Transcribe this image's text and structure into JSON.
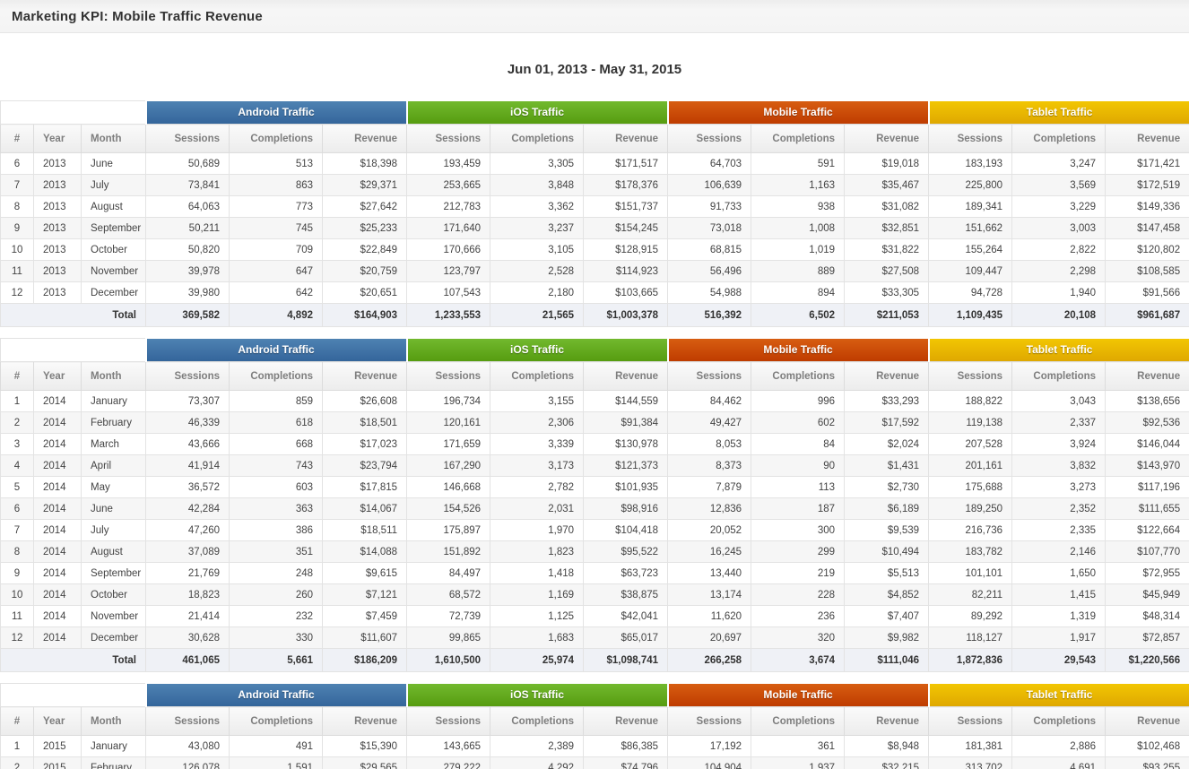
{
  "page": {
    "title": "Marketing KPI: Mobile Traffic Revenue",
    "date_range": "Jun 01, 2013 - May 31, 2015"
  },
  "columns": {
    "row_headers": [
      "#",
      "Year",
      "Month"
    ],
    "metrics": [
      "Sessions",
      "Completions",
      "Revenue"
    ],
    "total_label": "Total",
    "groups": [
      {
        "label": "Android Traffic",
        "color_top": "#4e82b2",
        "color_bottom": "#34659b"
      },
      {
        "label": "iOS Traffic",
        "color_top": "#72b92e",
        "color_bottom": "#569c10"
      },
      {
        "label": "Mobile Traffic",
        "color_top": "#d75d11",
        "color_bottom": "#bf3c00"
      },
      {
        "label": "Tablet Traffic",
        "color_top": "#f2c602",
        "color_bottom": "#dfa801"
      }
    ]
  },
  "tables": [
    {
      "year": "2013",
      "rows": [
        [
          "6",
          "2013",
          "June",
          "50,689",
          "513",
          "$18,398",
          "193,459",
          "3,305",
          "$171,517",
          "64,703",
          "591",
          "$19,018",
          "183,193",
          "3,247",
          "$171,421"
        ],
        [
          "7",
          "2013",
          "July",
          "73,841",
          "863",
          "$29,371",
          "253,665",
          "3,848",
          "$178,376",
          "106,639",
          "1,163",
          "$35,467",
          "225,800",
          "3,569",
          "$172,519"
        ],
        [
          "8",
          "2013",
          "August",
          "64,063",
          "773",
          "$27,642",
          "212,783",
          "3,362",
          "$151,737",
          "91,733",
          "938",
          "$31,082",
          "189,341",
          "3,229",
          "$149,336"
        ],
        [
          "9",
          "2013",
          "September",
          "50,211",
          "745",
          "$25,233",
          "171,640",
          "3,237",
          "$154,245",
          "73,018",
          "1,008",
          "$32,851",
          "151,662",
          "3,003",
          "$147,458"
        ],
        [
          "10",
          "2013",
          "October",
          "50,820",
          "709",
          "$22,849",
          "170,666",
          "3,105",
          "$128,915",
          "68,815",
          "1,019",
          "$31,822",
          "155,264",
          "2,822",
          "$120,802"
        ],
        [
          "11",
          "2013",
          "November",
          "39,978",
          "647",
          "$20,759",
          "123,797",
          "2,528",
          "$114,923",
          "56,496",
          "889",
          "$27,508",
          "109,447",
          "2,298",
          "$108,585"
        ],
        [
          "12",
          "2013",
          "December",
          "39,980",
          "642",
          "$20,651",
          "107,543",
          "2,180",
          "$103,665",
          "54,988",
          "894",
          "$33,305",
          "94,728",
          "1,940",
          "$91,566"
        ]
      ],
      "total": [
        "369,582",
        "4,892",
        "$164,903",
        "1,233,553",
        "21,565",
        "$1,003,378",
        "516,392",
        "6,502",
        "$211,053",
        "1,109,435",
        "20,108",
        "$961,687"
      ]
    },
    {
      "year": "2014",
      "rows": [
        [
          "1",
          "2014",
          "January",
          "73,307",
          "859",
          "$26,608",
          "196,734",
          "3,155",
          "$144,559",
          "84,462",
          "996",
          "$33,293",
          "188,822",
          "3,043",
          "$138,656"
        ],
        [
          "2",
          "2014",
          "February",
          "46,339",
          "618",
          "$18,501",
          "120,161",
          "2,306",
          "$91,384",
          "49,427",
          "602",
          "$17,592",
          "119,138",
          "2,337",
          "$92,536"
        ],
        [
          "3",
          "2014",
          "March",
          "43,666",
          "668",
          "$17,023",
          "171,659",
          "3,339",
          "$130,978",
          "8,053",
          "84",
          "$2,024",
          "207,528",
          "3,924",
          "$146,044"
        ],
        [
          "4",
          "2014",
          "April",
          "41,914",
          "743",
          "$23,794",
          "167,290",
          "3,173",
          "$121,373",
          "8,373",
          "90",
          "$1,431",
          "201,161",
          "3,832",
          "$143,970"
        ],
        [
          "5",
          "2014",
          "May",
          "36,572",
          "603",
          "$17,815",
          "146,668",
          "2,782",
          "$101,935",
          "7,879",
          "113",
          "$2,730",
          "175,688",
          "3,273",
          "$117,196"
        ],
        [
          "6",
          "2014",
          "June",
          "42,284",
          "363",
          "$14,067",
          "154,526",
          "2,031",
          "$98,916",
          "12,836",
          "187",
          "$6,189",
          "189,250",
          "2,352",
          "$111,655"
        ],
        [
          "7",
          "2014",
          "July",
          "47,260",
          "386",
          "$18,511",
          "175,897",
          "1,970",
          "$104,418",
          "20,052",
          "300",
          "$9,539",
          "216,736",
          "2,335",
          "$122,664"
        ],
        [
          "8",
          "2014",
          "August",
          "37,089",
          "351",
          "$14,088",
          "151,892",
          "1,823",
          "$95,522",
          "16,245",
          "299",
          "$10,494",
          "183,782",
          "2,146",
          "$107,770"
        ],
        [
          "9",
          "2014",
          "September",
          "21,769",
          "248",
          "$9,615",
          "84,497",
          "1,418",
          "$63,723",
          "13,440",
          "219",
          "$5,513",
          "101,101",
          "1,650",
          "$72,955"
        ],
        [
          "10",
          "2014",
          "October",
          "18,823",
          "260",
          "$7,121",
          "68,572",
          "1,169",
          "$38,875",
          "13,174",
          "228",
          "$4,852",
          "82,211",
          "1,415",
          "$45,949"
        ],
        [
          "11",
          "2014",
          "November",
          "21,414",
          "232",
          "$7,459",
          "72,739",
          "1,125",
          "$42,041",
          "11,620",
          "236",
          "$7,407",
          "89,292",
          "1,319",
          "$48,314"
        ],
        [
          "12",
          "2014",
          "December",
          "30,628",
          "330",
          "$11,607",
          "99,865",
          "1,683",
          "$65,017",
          "20,697",
          "320",
          "$9,982",
          "118,127",
          "1,917",
          "$72,857"
        ]
      ],
      "total": [
        "461,065",
        "5,661",
        "$186,209",
        "1,610,500",
        "25,974",
        "$1,098,741",
        "266,258",
        "3,674",
        "$111,046",
        "1,872,836",
        "29,543",
        "$1,220,566"
      ]
    },
    {
      "year": "2015",
      "rows": [
        [
          "1",
          "2015",
          "January",
          "43,080",
          "491",
          "$15,390",
          "143,665",
          "2,389",
          "$86,385",
          "17,192",
          "361",
          "$8,948",
          "181,381",
          "2,886",
          "$102,468"
        ],
        [
          "2",
          "2015",
          "February",
          "126,078",
          "1,591",
          "$29,565",
          "279,222",
          "4,292",
          "$74,796",
          "104,904",
          "1,937",
          "$32,215",
          "313,702",
          "4,691",
          "$93,255"
        ]
      ],
      "total": null
    }
  ]
}
